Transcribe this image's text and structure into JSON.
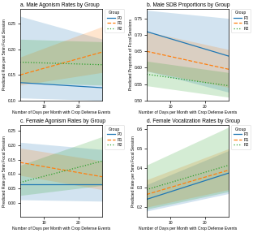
{
  "chart_data": [
    {
      "type": "line",
      "title": "a. Male Agonism Rates by Group",
      "x_label": "Number of Days per Month with Crop Defense Events",
      "y_label": "Predicted Rate per 5min Focal Session",
      "x": [
        3,
        27
      ],
      "xlim": [
        3,
        27
      ],
      "xticks": [
        10,
        20
      ],
      "ylim": [
        0.1,
        0.28
      ],
      "yticks": [
        {
          "value": 0.1,
          "label": "0.10"
        },
        {
          "value": 0.15,
          "label": "0.15"
        },
        {
          "value": 0.2,
          "label": "0.20"
        },
        {
          "value": 0.25,
          "label": "0.25"
        }
      ],
      "grid": false,
      "legend": "upper left",
      "legend_title": "Group",
      "series": [
        {
          "name": "P0",
          "line_style": "solid",
          "values": [
            0.135,
            0.125
          ],
          "ci_low": [
            0.105,
            0.1
          ],
          "ci_high": [
            0.265,
            0.22
          ]
        },
        {
          "name": "R1",
          "line_style": "dashed",
          "values": [
            0.15,
            0.195
          ],
          "ci_low": [
            0.13,
            0.155
          ],
          "ci_high": [
            0.185,
            0.245
          ]
        },
        {
          "name": "R2",
          "line_style": "dotted",
          "values": [
            0.175,
            0.17
          ],
          "ci_low": [
            0.135,
            0.13
          ],
          "ci_high": [
            0.22,
            0.215
          ]
        }
      ]
    },
    {
      "type": "line",
      "title": "b. Male SDB Proportions by Group",
      "x_label": "Number of Days per Month with Crop Defense Events",
      "y_label": "Predicted Proportion of Focal Sessions",
      "x": [
        3,
        27
      ],
      "xlim": [
        3,
        27
      ],
      "xticks": [
        10,
        20
      ],
      "ylim": [
        0.5,
        0.78
      ],
      "yticks": [
        {
          "value": 0.5,
          "label": "0.50"
        },
        {
          "value": 0.55,
          "label": "0.55"
        },
        {
          "value": 0.6,
          "label": "0.60"
        },
        {
          "value": 0.65,
          "label": "0.65"
        },
        {
          "value": 0.7,
          "label": "0.70"
        },
        {
          "value": 0.75,
          "label": "0.75"
        }
      ],
      "grid": false,
      "legend": "upper left",
      "legend_title": "Group",
      "series": [
        {
          "name": "P0",
          "line_style": "solid",
          "values": [
            0.71,
            0.635
          ],
          "ci_low": [
            0.59,
            0.525
          ],
          "ci_high": [
            0.775,
            0.75
          ]
        },
        {
          "name": "R1",
          "line_style": "dashed",
          "values": [
            0.65,
            0.595
          ],
          "ci_low": [
            0.59,
            0.54
          ],
          "ci_high": [
            0.71,
            0.655
          ]
        },
        {
          "name": "R2",
          "line_style": "dotted",
          "values": [
            0.58,
            0.545
          ],
          "ci_low": [
            0.545,
            0.51
          ],
          "ci_high": [
            0.62,
            0.585
          ]
        }
      ]
    },
    {
      "type": "line",
      "title": "c. Female Agonism Rates by Group",
      "x_label": "Number of Days per Month with Crop Defense Events",
      "y_label": "Predicted Rate per 5min Focal Session",
      "x": [
        3,
        27
      ],
      "xlim": [
        3,
        27
      ],
      "xticks": [
        10,
        20
      ],
      "ylim": [
        -0.05,
        0.27
      ],
      "yticks": [
        {
          "value": 0.0,
          "label": "0.00"
        },
        {
          "value": 0.05,
          "label": "0.05"
        },
        {
          "value": 0.1,
          "label": "0.10"
        },
        {
          "value": 0.15,
          "label": "0.15"
        },
        {
          "value": 0.2,
          "label": "0.20"
        },
        {
          "value": 0.25,
          "label": "0.25"
        }
      ],
      "grid": false,
      "legend": "upper left",
      "legend_title": "Group",
      "series": [
        {
          "name": "P0",
          "line_style": "solid",
          "values": [
            0.065,
            0.065
          ],
          "ci_low": [
            0.01,
            0.005
          ],
          "ci_high": [
            0.21,
            0.185
          ]
        },
        {
          "name": "R1",
          "line_style": "dashed",
          "values": [
            0.14,
            0.09
          ],
          "ci_low": [
            0.095,
            0.045
          ],
          "ci_high": [
            0.19,
            0.145
          ]
        },
        {
          "name": "R2",
          "line_style": "dotted",
          "values": [
            0.07,
            0.145
          ],
          "ci_low": [
            0.025,
            0.06
          ],
          "ci_high": [
            0.13,
            0.23
          ]
        }
      ]
    },
    {
      "type": "line",
      "title": "d. Female Vocalization Rates by Group",
      "x_label": "Number of Days per Month with Crop Defense Events",
      "y_label": "Predicted Rate per 5min Focal Session",
      "x": [
        3,
        27
      ],
      "xlim": [
        3,
        27
      ],
      "xticks": [
        10,
        20
      ],
      "ylim": [
        0.15,
        0.62
      ],
      "yticks": [
        0.2,
        0.3,
        0.4,
        0.5,
        0.6
      ],
      "grid": false,
      "legend": "upper left",
      "legend_title": "Group",
      "series": [
        {
          "name": "P0",
          "line_style": "solid",
          "values": [
            0.24,
            0.375
          ],
          "ci_low": [
            0.18,
            0.27
          ],
          "ci_high": [
            0.315,
            0.49
          ]
        },
        {
          "name": "R1",
          "line_style": "dashed",
          "values": [
            0.265,
            0.39
          ],
          "ci_low": [
            0.2,
            0.29
          ],
          "ci_high": [
            0.34,
            0.5
          ]
        },
        {
          "name": "R2",
          "line_style": "dotted",
          "values": [
            0.29,
            0.415
          ],
          "ci_low": [
            0.19,
            0.28
          ],
          "ci_high": [
            0.415,
            0.61
          ]
        }
      ]
    }
  ]
}
